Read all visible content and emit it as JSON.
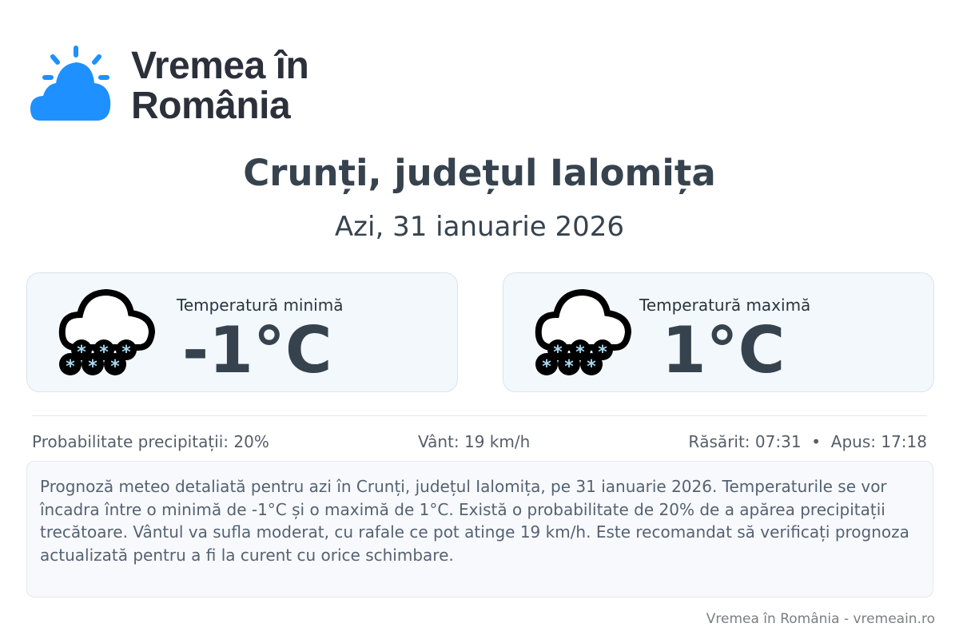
{
  "brand": {
    "line1": "Vremea în",
    "line2": "România",
    "color": "#1e90ff"
  },
  "header": {
    "title": "Crunți, județul Ialomița",
    "subtitle": "Azi, 31 ianuarie 2026"
  },
  "cards": [
    {
      "label": "Temperatură minimă",
      "value": "-1°C",
      "icon": "snow-cloud-icon"
    },
    {
      "label": "Temperatură maximă",
      "value": "1°C",
      "icon": "snow-cloud-icon"
    }
  ],
  "info": {
    "precip": "Probabilitate precipitații: 20%",
    "wind": "Vânt: 19 km/h",
    "sunrise": "Răsărit: 07:31",
    "separator": "•",
    "sunset": "Apus: 17:18"
  },
  "description": "Prognoză meteo detaliată pentru azi în Crunți, județul Ialomița, pe 31 ianuarie 2026. Temperaturile se vor încadra între o minimă de -1°C și o maximă de 1°C. Există o probabilitate de 20% de a apărea precipitații trecătoare. Vântul va sufla moderat, cu rafale ce pot atinge 19 km/h. Este recomandat să verificați prognoza actualizată pentru a fi la curent cu orice schimbare.",
  "footer": "Vremea în România - vremeain.ro"
}
